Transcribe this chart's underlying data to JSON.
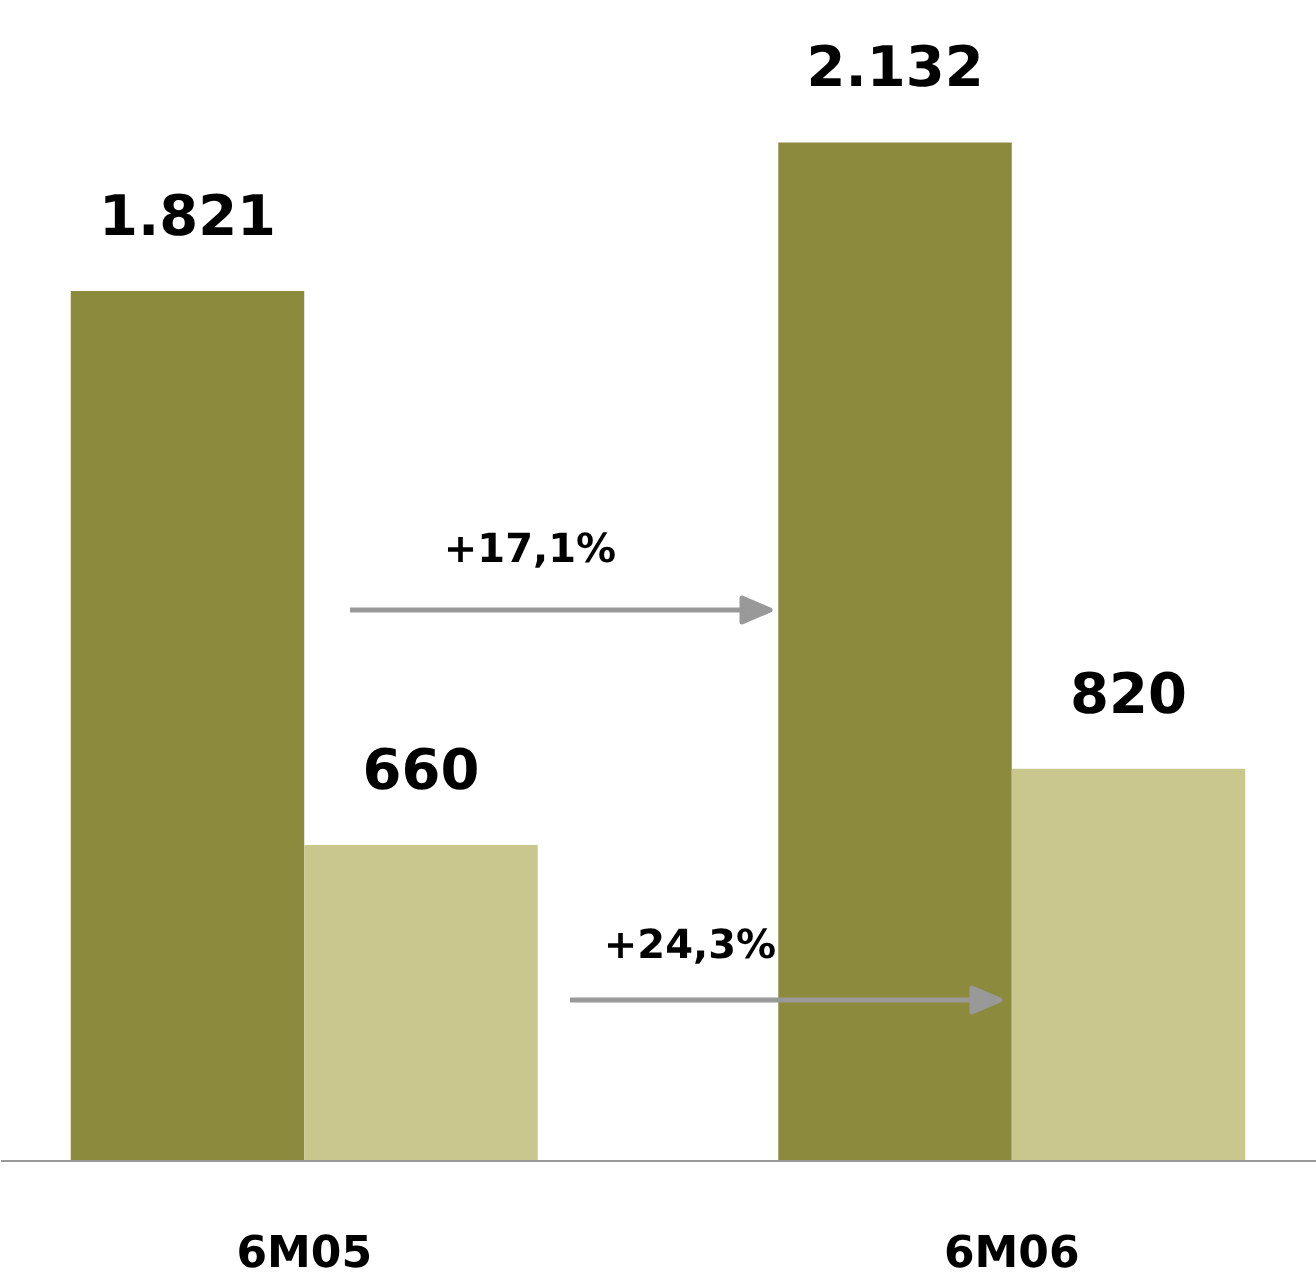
{
  "chart_data": {
    "type": "bar",
    "categories": [
      "6M05",
      "6M06"
    ],
    "series": [
      {
        "color": "#8c8a3c",
        "values": [
          1821,
          2132
        ],
        "value_labels": [
          "1.821",
          "2.132"
        ]
      },
      {
        "color": "#c9c68e",
        "values": [
          660,
          820
        ],
        "value_labels": [
          "660",
          "820"
        ]
      }
    ],
    "annotations": [
      "+17,1%",
      "+24,3%"
    ],
    "grid": false,
    "legend": false
  }
}
